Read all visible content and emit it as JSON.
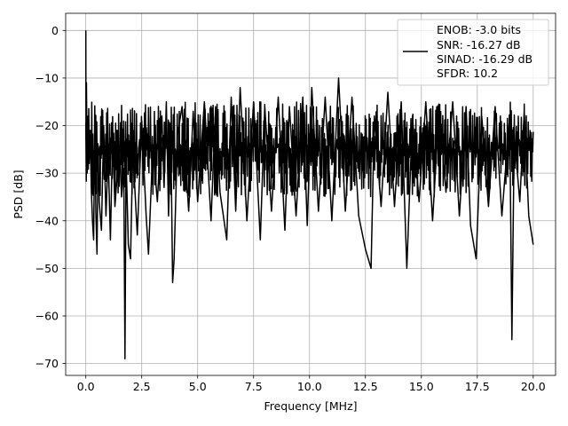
{
  "chart_data": {
    "type": "line",
    "title": "",
    "xlabel": "Frequency [MHz]",
    "ylabel": "PSD [dB]",
    "xlim": [
      -0.9,
      21.0
    ],
    "ylim": [
      -72.5,
      3.6
    ],
    "xticks": [
      0.0,
      2.5,
      5.0,
      7.5,
      10.0,
      12.5,
      15.0,
      17.5,
      20.0
    ],
    "xtick_labels": [
      "0.0",
      "2.5",
      "5.0",
      "7.5",
      "10.0",
      "12.5",
      "15.0",
      "17.5",
      "20.0"
    ],
    "yticks": [
      0,
      -10,
      -20,
      -30,
      -40,
      -50,
      -60,
      -70
    ],
    "ytick_labels": [
      "0",
      "−10",
      "−20",
      "−30",
      "−40",
      "−50",
      "−60",
      "−70"
    ],
    "grid": true,
    "legend_position": "top-right",
    "legend_lines": [
      "ENOB: -3.0 bits",
      "SNR: -16.27 dB",
      "SINAD: -16.29 dB",
      "SFDR: 10.2"
    ],
    "series": [
      {
        "color": "#000000",
        "noise_band_db": [
          -35,
          -15
        ],
        "points": [
          [
            0.0,
            0.0
          ],
          [
            0.01,
            -23
          ],
          [
            0.03,
            -11
          ],
          [
            0.06,
            -30
          ],
          [
            0.1,
            -18
          ],
          [
            0.15,
            -28
          ],
          [
            0.2,
            -21
          ],
          [
            0.25,
            -34
          ],
          [
            0.3,
            -40
          ],
          [
            0.35,
            -44
          ],
          [
            0.4,
            -19
          ],
          [
            0.45,
            -38
          ],
          [
            0.5,
            -47
          ],
          [
            0.55,
            -24
          ],
          [
            0.6,
            -36
          ],
          [
            0.7,
            -42
          ],
          [
            0.8,
            -20
          ],
          [
            0.9,
            -39
          ],
          [
            1.0,
            -26
          ],
          [
            1.1,
            -44
          ],
          [
            1.2,
            -22
          ],
          [
            1.3,
            -37
          ],
          [
            1.5,
            -24
          ],
          [
            1.6,
            -35
          ],
          [
            1.7,
            -29
          ],
          [
            1.75,
            -69
          ],
          [
            1.8,
            -27
          ],
          [
            1.9,
            -45
          ],
          [
            2.0,
            -48
          ],
          [
            2.1,
            -25
          ],
          [
            2.3,
            -43
          ],
          [
            2.5,
            -19
          ],
          [
            2.7,
            -39
          ],
          [
            2.8,
            -47
          ],
          [
            3.0,
            -24
          ],
          [
            3.2,
            -36
          ],
          [
            3.4,
            -18
          ],
          [
            3.5,
            -33
          ],
          [
            3.6,
            -15
          ],
          [
            3.7,
            -39
          ],
          [
            3.8,
            -22
          ],
          [
            3.88,
            -53
          ],
          [
            3.95,
            -48
          ],
          [
            4.1,
            -22
          ],
          [
            4.3,
            -16
          ],
          [
            4.6,
            -38
          ],
          [
            4.8,
            -17
          ],
          [
            5.0,
            -36
          ],
          [
            5.3,
            -15
          ],
          [
            5.6,
            -40
          ],
          [
            5.8,
            -16
          ],
          [
            6.0,
            -34
          ],
          [
            6.3,
            -44
          ],
          [
            6.5,
            -14
          ],
          [
            6.7,
            -38
          ],
          [
            6.9,
            -12
          ],
          [
            7.2,
            -40
          ],
          [
            7.5,
            -15
          ],
          [
            7.8,
            -44
          ],
          [
            8.0,
            -16
          ],
          [
            8.3,
            -38
          ],
          [
            8.6,
            -14
          ],
          [
            8.9,
            -42
          ],
          [
            9.1,
            -16
          ],
          [
            9.4,
            -39
          ],
          [
            9.7,
            -14
          ],
          [
            9.9,
            -41
          ],
          [
            10.1,
            -12
          ],
          [
            10.4,
            -38
          ],
          [
            10.7,
            -14
          ],
          [
            11.0,
            -40
          ],
          [
            11.3,
            -10
          ],
          [
            11.6,
            -38
          ],
          [
            11.9,
            -14
          ],
          [
            12.2,
            -39
          ],
          [
            12.5,
            -46
          ],
          [
            12.75,
            -50
          ],
          [
            12.9,
            -18
          ],
          [
            13.2,
            -37
          ],
          [
            13.5,
            -13
          ],
          [
            13.8,
            -37
          ],
          [
            14.1,
            -15
          ],
          [
            14.35,
            -50
          ],
          [
            14.6,
            -18
          ],
          [
            14.9,
            -36
          ],
          [
            15.2,
            -15
          ],
          [
            15.5,
            -40
          ],
          [
            15.8,
            -16
          ],
          [
            16.1,
            -34
          ],
          [
            16.4,
            -15
          ],
          [
            16.7,
            -39
          ],
          [
            17.0,
            -16
          ],
          [
            17.2,
            -41
          ],
          [
            17.45,
            -48
          ],
          [
            17.7,
            -18
          ],
          [
            18.0,
            -37
          ],
          [
            18.3,
            -16
          ],
          [
            18.6,
            -39
          ],
          [
            18.95,
            -18
          ],
          [
            19.05,
            -65
          ],
          [
            19.15,
            -22
          ],
          [
            19.4,
            -36
          ],
          [
            19.6,
            -17
          ],
          [
            19.8,
            -39
          ],
          [
            20.0,
            -45
          ]
        ]
      }
    ]
  }
}
